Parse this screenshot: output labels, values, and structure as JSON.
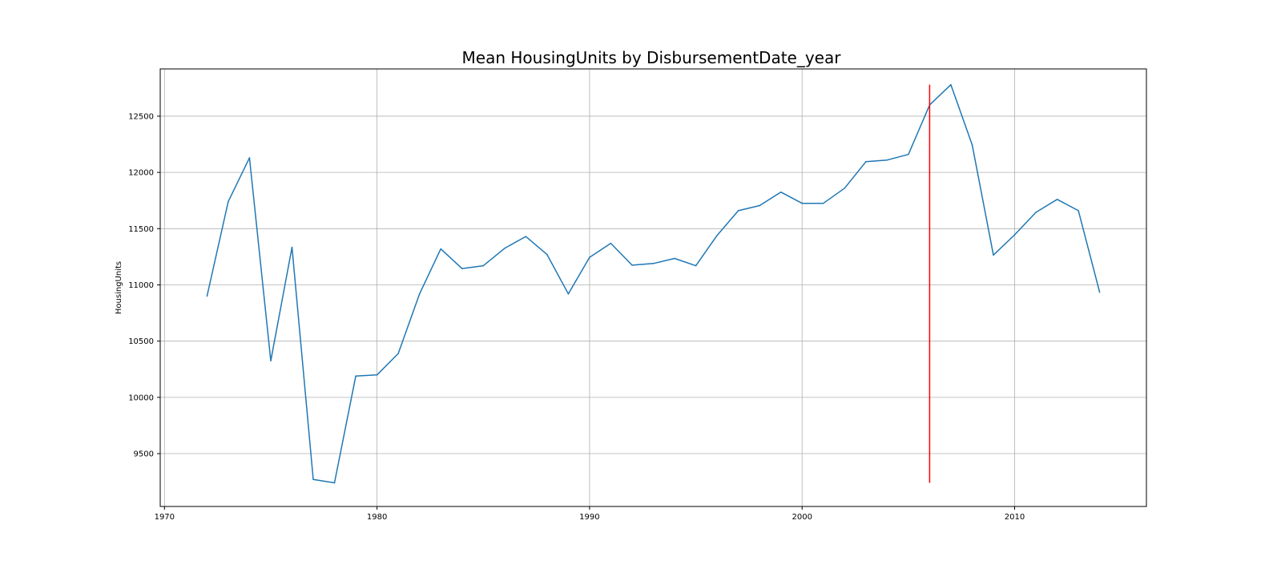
{
  "chart_data": {
    "type": "line",
    "title": "Mean HousingUnits by DisbursementDate_year",
    "xlabel": "",
    "ylabel": "HousingUnits",
    "xlim": [
      1969.8,
      2016.2
    ],
    "ylim": [
      9030,
      12920
    ],
    "x_ticks": [
      1970,
      1980,
      1990,
      2000,
      2010
    ],
    "y_ticks": [
      9500,
      10000,
      10500,
      11000,
      11500,
      12000,
      12500
    ],
    "grid": true,
    "colors": {
      "line": "#1f77b4",
      "marker": "#ff0000",
      "grid": "#b0b0b0"
    },
    "series": [
      {
        "x": [
          1972,
          1973,
          1974,
          1975,
          1976,
          1977,
          1978,
          1979,
          1980,
          1981,
          1982,
          1983,
          1984,
          1985,
          1986,
          1987,
          1988,
          1989,
          1990,
          1991,
          1992,
          1993,
          1994,
          1995,
          1996,
          1997,
          1998,
          1999,
          2000,
          2001,
          2002,
          2003,
          2004,
          2005,
          2006,
          2007,
          2008,
          2009,
          2010,
          2011,
          2012,
          2013,
          2014
        ],
        "values": [
          10900,
          11740,
          12130,
          10325,
          11335,
          9270,
          9240,
          10190,
          10200,
          10390,
          10920,
          11320,
          11145,
          11170,
          11325,
          11430,
          11270,
          10920,
          11245,
          11370,
          11175,
          11190,
          11235,
          11170,
          11440,
          11660,
          11705,
          11825,
          11725,
          11725,
          11860,
          12095,
          12110,
          12160,
          12600,
          12780,
          12245,
          11265,
          11445,
          11645,
          11760,
          11660,
          10935
        ]
      }
    ],
    "vertical_line": {
      "x": 2006,
      "y_from": 9240,
      "y_to": 12780
    }
  }
}
